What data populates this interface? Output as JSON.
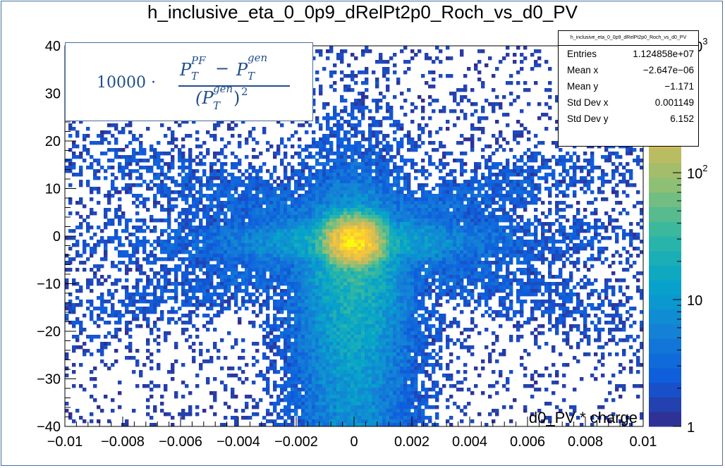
{
  "chart_data": {
    "type": "heatmap",
    "title": "h_inclusive_eta_0_0p9_dRelPt2p0_Roch_vs_d0_PV",
    "xlabel": "d0_PV * charge",
    "ylabel": "",
    "xlim": [
      -0.01,
      0.01
    ],
    "ylim": [
      -40,
      40
    ],
    "x_ticks": [
      "−0.01",
      "−0.008",
      "−0.006",
      "−0.004",
      "−0.002",
      "0",
      "0.002",
      "0.004",
      "0.006",
      "0.008",
      "0.01"
    ],
    "x_tick_values": [
      -0.01,
      -0.008,
      -0.006,
      -0.004,
      -0.002,
      0,
      0.002,
      0.004,
      0.006,
      0.008,
      0.01
    ],
    "y_ticks": [
      "−40",
      "−30",
      "−20",
      "−10",
      "0",
      "10",
      "20",
      "30",
      "40"
    ],
    "y_tick_values": [
      -40,
      -30,
      -20,
      -10,
      0,
      10,
      20,
      30,
      40
    ],
    "z_scale": "log",
    "zlim": [
      1,
      1000
    ],
    "z_ticks": [
      "1",
      "10",
      "10",
      "10"
    ],
    "z_tick_exponents": [
      "",
      "",
      "2",
      "3"
    ],
    "z_tick_values": [
      1,
      10,
      100,
      1000
    ],
    "colormap": "kBird",
    "colors": [
      "#352a87",
      "#0f5cdd",
      "#1481d6",
      "#06a4ca",
      "#2eb7a4",
      "#87bf77",
      "#d1bb59",
      "#fec832",
      "#f9fb0e"
    ],
    "stats": {
      "name": "h_inclusive_eta_0_0p9_dRelPt2p0_Roch_vs_d0_PV",
      "rows": [
        {
          "label": "Entries",
          "value": "1.124858e+07"
        },
        {
          "label": "Mean x",
          "value": "−2.647e−06"
        },
        {
          "label": "Mean y",
          "value": "−1.171"
        },
        {
          "label": "Std Dev x",
          "value": "0.001149"
        },
        {
          "label": "Std Dev y",
          "value": "6.152"
        }
      ]
    },
    "annotation": {
      "factor": "10000 ·",
      "numerator_a": "P",
      "numerator_a_sub": "T",
      "numerator_a_sup": "PF",
      "minus": "−",
      "numerator_b": "P",
      "numerator_b_sub": "T",
      "numerator_b_sup": "gen",
      "denominator": "(P",
      "denominator_sub": "T",
      "denominator_sup": "gen",
      "denominator_close": ")",
      "denominator_power": "2"
    }
  }
}
